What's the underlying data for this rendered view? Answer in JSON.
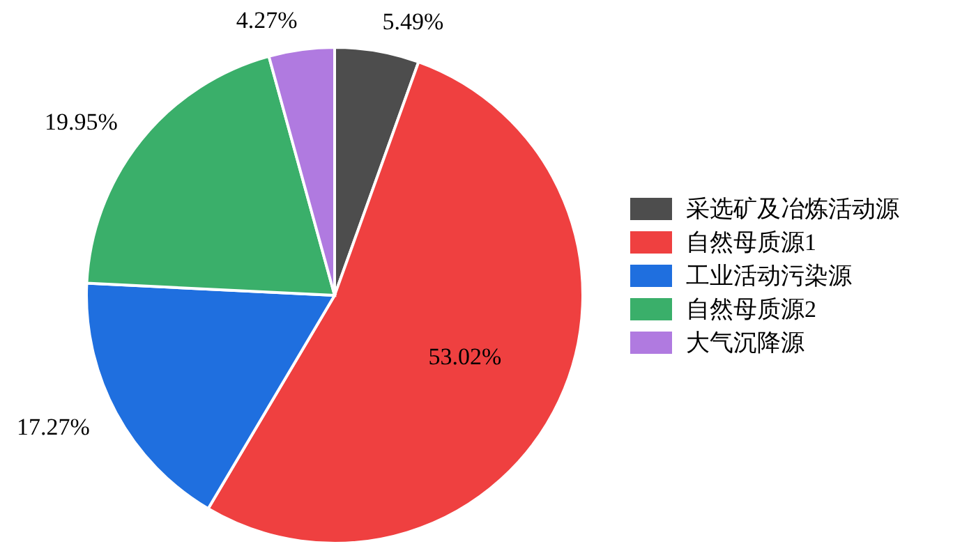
{
  "chart_data": {
    "type": "pie",
    "categories": [
      "采选矿及冶炼活动源",
      "自然母质源1",
      "工业活动污染源",
      "自然母质源2",
      "大气沉降源"
    ],
    "values": [
      5.49,
      53.02,
      17.27,
      19.95,
      4.27
    ],
    "colors": [
      "#4d4d4d",
      "#ef4040",
      "#1f6fdf",
      "#3aaf6a",
      "#b07ae0"
    ],
    "value_labels": [
      "5.49%",
      "53.02%",
      "17.27%",
      "19.95%",
      "4.27%"
    ],
    "legend": "right"
  }
}
